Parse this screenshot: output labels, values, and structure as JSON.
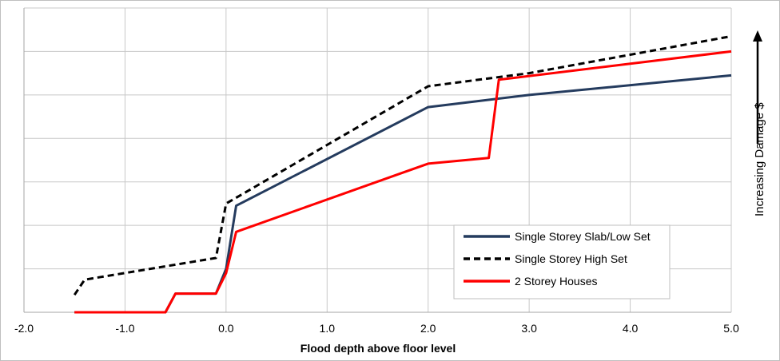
{
  "chart_data": {
    "type": "line",
    "title": "",
    "xlabel": "Flood depth above floor level",
    "ylabel": "Increasing  Damage $",
    "xlim": [
      -2.0,
      5.0
    ],
    "ylim": [
      0,
      7
    ],
    "x_ticks": [
      "-2.0",
      "-1.0",
      "0.0",
      "1.0",
      "2.0",
      "3.0",
      "4.0",
      "5.0"
    ],
    "y_tick_labels_shown": false,
    "grid": true,
    "legend_position": "bottom-right",
    "series": [
      {
        "name": "Single Storey Slab/Low Set",
        "color": "#243b5e",
        "style": "solid",
        "points": [
          [
            -1.5,
            0
          ],
          [
            -0.6,
            0
          ],
          [
            -0.5,
            0.43
          ],
          [
            -0.1,
            0.43
          ],
          [
            0,
            1.0
          ],
          [
            0.1,
            2.45
          ],
          [
            2.0,
            4.72
          ],
          [
            3.0,
            5.0
          ],
          [
            5.0,
            5.45
          ]
        ]
      },
      {
        "name": "Single Storey High Set",
        "color": "#000000",
        "style": "dashed",
        "points": [
          [
            -1.5,
            0.4
          ],
          [
            -1.4,
            0.75
          ],
          [
            -0.1,
            1.25
          ],
          [
            0,
            2.5
          ],
          [
            2.0,
            5.2
          ],
          [
            3.0,
            5.5
          ],
          [
            5.0,
            6.35
          ]
        ]
      },
      {
        "name": "2 Storey Houses",
        "color": "#ff0000",
        "style": "solid",
        "points": [
          [
            -1.5,
            0
          ],
          [
            -0.6,
            0
          ],
          [
            -0.5,
            0.43
          ],
          [
            -0.1,
            0.43
          ],
          [
            0,
            0.9
          ],
          [
            0.1,
            1.85
          ],
          [
            2.0,
            3.42
          ],
          [
            2.6,
            3.55
          ],
          [
            2.7,
            5.35
          ],
          [
            5.0,
            6.0
          ]
        ]
      }
    ]
  }
}
